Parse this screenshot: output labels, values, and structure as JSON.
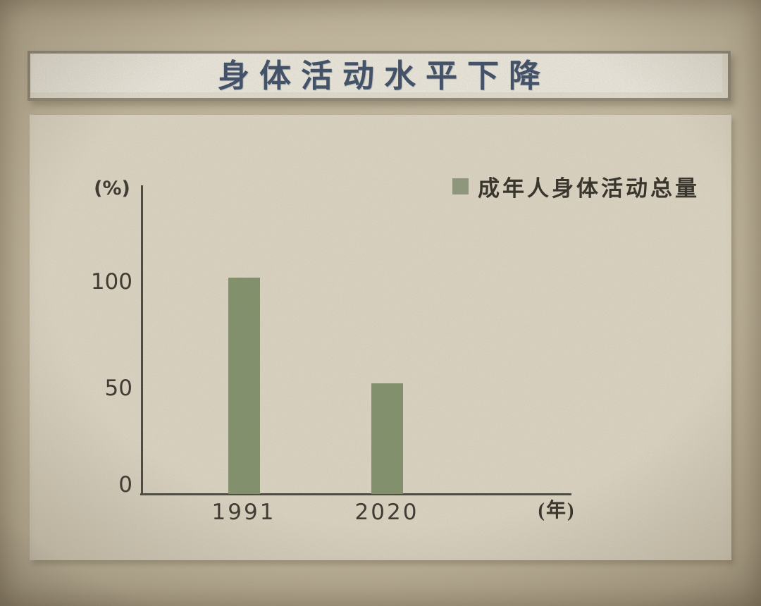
{
  "slide": {
    "background_color": "#c6baa1"
  },
  "title_banner": {
    "text": "身体活动水平下降",
    "text_color": "#2c4162",
    "fill_color": "#ece8db",
    "border_color": "#8b8273"
  },
  "chart_data": {
    "type": "bar",
    "title": "身体活动水平下降",
    "categories": [
      "1991",
      "2020"
    ],
    "series": [
      {
        "name": "成年人身体活动总量",
        "values": [
          102,
          52
        ]
      }
    ],
    "xlabel": "(年)",
    "ylabel": "(%)",
    "yticks": [
      0,
      50,
      100
    ],
    "ylim": [
      0,
      145
    ],
    "grid": false,
    "legend_position": "top-right",
    "bar_color": "#7c8f68",
    "legend_swatch_color": "#8a987c",
    "axis_color": "#3a382f",
    "tick_text_color": "#272520",
    "panel_color": "#e6dfce"
  }
}
